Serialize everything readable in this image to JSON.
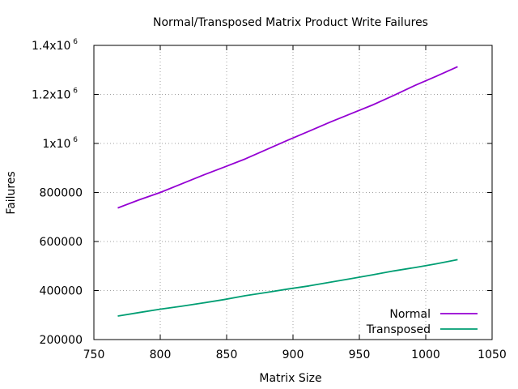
{
  "chart_data": {
    "type": "line",
    "title": "Normal/Transposed Matrix Product Write Failures",
    "xlabel": "Matrix Size",
    "ylabel": "Failures",
    "xlim": [
      750,
      1050
    ],
    "ylim": [
      200000,
      1400000
    ],
    "grid": true,
    "legend_position": "bottom-right",
    "x_ticks": [
      {
        "value": 750,
        "label": "750"
      },
      {
        "value": 800,
        "label": "800"
      },
      {
        "value": 850,
        "label": "850"
      },
      {
        "value": 900,
        "label": "900"
      },
      {
        "value": 950,
        "label": "950"
      },
      {
        "value": 1000,
        "label": "1000"
      },
      {
        "value": 1050,
        "label": "1050"
      }
    ],
    "y_ticks": [
      {
        "value": 200000,
        "label": "200000",
        "exp": ""
      },
      {
        "value": 400000,
        "label": "400000",
        "exp": ""
      },
      {
        "value": 600000,
        "label": "600000",
        "exp": ""
      },
      {
        "value": 800000,
        "label": "800000",
        "exp": ""
      },
      {
        "value": 1000000,
        "label": "1x10",
        "exp": "6"
      },
      {
        "value": 1200000,
        "label": "1.2x10",
        "exp": "6"
      },
      {
        "value": 1400000,
        "label": "1.4x10",
        "exp": "6"
      }
    ],
    "series": [
      {
        "name": "Normal",
        "color": "#9400d3",
        "x": [
          768,
          784,
          800,
          816,
          832,
          848,
          864,
          880,
          896,
          912,
          928,
          944,
          960,
          976,
          992,
          1008,
          1024
        ],
        "y": [
          737000,
          770000,
          800000,
          835000,
          870000,
          903000,
          937000,
          975000,
          1013000,
          1050000,
          1087000,
          1122000,
          1157000,
          1196000,
          1237000,
          1274000,
          1313000
        ]
      },
      {
        "name": "Transposed",
        "color": "#009e73",
        "x": [
          768,
          784,
          800,
          816,
          832,
          848,
          864,
          880,
          896,
          912,
          928,
          944,
          960,
          976,
          992,
          1008,
          1024
        ],
        "y": [
          296000,
          310000,
          324000,
          336000,
          349000,
          363000,
          379000,
          392000,
          406000,
          419000,
          434000,
          449000,
          464000,
          480000,
          494000,
          509000,
          526000
        ]
      }
    ]
  }
}
